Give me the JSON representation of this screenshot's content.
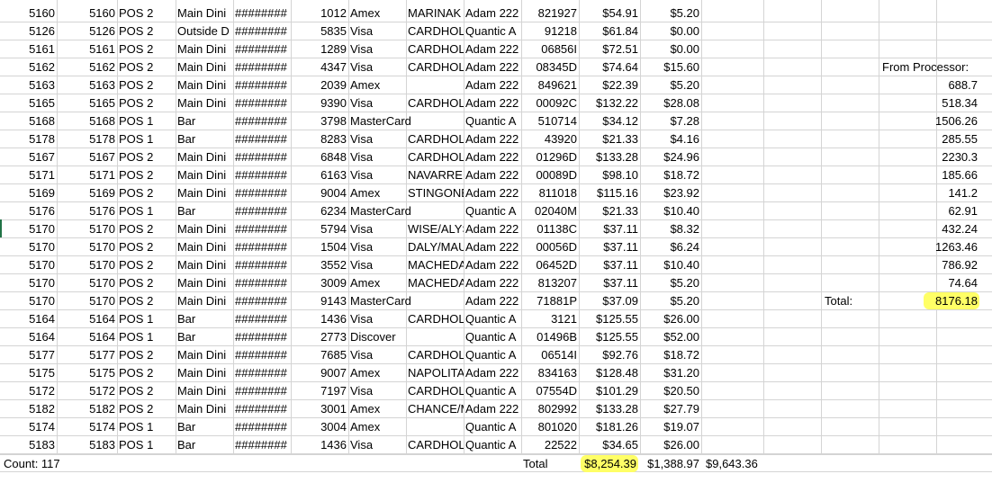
{
  "rows": [
    {
      "a": "5160",
      "b": "5160",
      "c": "POS 2",
      "d": "Main Dini",
      "e": "########",
      "f": "1012",
      "g": "Amex",
      "h": "MARINAK",
      "i": "Adam 222",
      "j": "821927",
      "k": "$54.91",
      "l": "$5.20"
    },
    {
      "a": "5126",
      "b": "5126",
      "c": "POS 2",
      "d": "Outside D",
      "e": "########",
      "f": "5835",
      "g": "Visa",
      "h": "CARDHOLI",
      "i": "Quantic A",
      "j": "91218",
      "k": "$61.84",
      "l": "$0.00"
    },
    {
      "a": "5161",
      "b": "5161",
      "c": "POS 2",
      "d": "Main Dini",
      "e": "########",
      "f": "1289",
      "g": "Visa",
      "h": "CARDHOLI",
      "i": "Adam 222",
      "j": "06856I",
      "k": "$72.51",
      "l": "$0.00"
    },
    {
      "a": "5162",
      "b": "5162",
      "c": "POS 2",
      "d": "Main Dini",
      "e": "########",
      "f": "4347",
      "g": "Visa",
      "h": "CARDHOLI",
      "i": "Adam 222",
      "j": "08345D",
      "k": "$74.64",
      "l": "$15.60"
    },
    {
      "a": "5163",
      "b": "5163",
      "c": "POS 2",
      "d": "Main Dini",
      "e": "########",
      "f": "2039",
      "g": "Amex",
      "h": "",
      "i": "Adam 222",
      "j": "849621",
      "k": "$22.39",
      "l": "$5.20"
    },
    {
      "a": "5165",
      "b": "5165",
      "c": "POS 2",
      "d": "Main Dini",
      "e": "########",
      "f": "9390",
      "g": "Visa",
      "h": "CARDHOLI",
      "i": "Adam 222",
      "j": "00092C",
      "k": "$132.22",
      "l": "$28.08"
    },
    {
      "a": "5168",
      "b": "5168",
      "c": "POS 1",
      "d": "Bar",
      "e": "########",
      "f": "3798",
      "g": "MasterCard",
      "h": "",
      "i": "Quantic A",
      "j": "510714",
      "k": "$34.12",
      "l": "$7.28"
    },
    {
      "a": "5178",
      "b": "5178",
      "c": "POS 1",
      "d": "Bar",
      "e": "########",
      "f": "8283",
      "g": "Visa",
      "h": "CARDHOLI",
      "i": "Adam 222",
      "j": "43920",
      "k": "$21.33",
      "l": "$4.16"
    },
    {
      "a": "5167",
      "b": "5167",
      "c": "POS 2",
      "d": "Main Dini",
      "e": "########",
      "f": "6848",
      "g": "Visa",
      "h": "CARDHOLI",
      "i": "Adam 222",
      "j": "01296D",
      "k": "$133.28",
      "l": "$24.96"
    },
    {
      "a": "5171",
      "b": "5171",
      "c": "POS 2",
      "d": "Main Dini",
      "e": "########",
      "f": "6163",
      "g": "Visa",
      "h": "NAVARRE",
      "i": "Adam 222",
      "j": "00089D",
      "k": "$98.10",
      "l": "$18.72"
    },
    {
      "a": "5169",
      "b": "5169",
      "c": "POS 2",
      "d": "Main Dini",
      "e": "########",
      "f": "9004",
      "g": "Amex",
      "h": "STINGONE",
      "i": "Adam 222",
      "j": "811018",
      "k": "$115.16",
      "l": "$23.92"
    },
    {
      "a": "5176",
      "b": "5176",
      "c": "POS 1",
      "d": "Bar",
      "e": "########",
      "f": "6234",
      "g": "MasterCard",
      "h": "",
      "i": "Quantic A",
      "j": "02040M",
      "k": "$21.33",
      "l": "$10.40"
    },
    {
      "a": "5170",
      "b": "5170",
      "c": "POS 2",
      "d": "Main Dini",
      "e": "########",
      "f": "5794",
      "g": "Visa",
      "h": "WISE/ALYS",
      "i": "Adam 222",
      "j": "01138C",
      "k": "$37.11",
      "l": "$8.32"
    },
    {
      "a": "5170",
      "b": "5170",
      "c": "POS 2",
      "d": "Main Dini",
      "e": "########",
      "f": "1504",
      "g": "Visa",
      "h": "DALY/MAU",
      "i": "Adam 222",
      "j": "00056D",
      "k": "$37.11",
      "l": "$6.24"
    },
    {
      "a": "5170",
      "b": "5170",
      "c": "POS 2",
      "d": "Main Dini",
      "e": "########",
      "f": "3552",
      "g": "Visa",
      "h": "MACHEDA",
      "i": "Adam 222",
      "j": "06452D",
      "k": "$37.11",
      "l": "$10.40"
    },
    {
      "a": "5170",
      "b": "5170",
      "c": "POS 2",
      "d": "Main Dini",
      "e": "########",
      "f": "3009",
      "g": "Amex",
      "h": "MACHEDA",
      "i": "Adam 222",
      "j": "813207",
      "k": "$37.11",
      "l": "$5.20"
    },
    {
      "a": "5170",
      "b": "5170",
      "c": "POS 2",
      "d": "Main Dini",
      "e": "########",
      "f": "9143",
      "g": "MasterCard",
      "h": "",
      "i": "Adam 222",
      "j": "71881P",
      "k": "$37.09",
      "l": "$5.20"
    },
    {
      "a": "5164",
      "b": "5164",
      "c": "POS 1",
      "d": "Bar",
      "e": "########",
      "f": "1436",
      "g": "Visa",
      "h": "CARDHOLI",
      "i": "Quantic A",
      "j": "3121",
      "k": "$125.55",
      "l": "$26.00"
    },
    {
      "a": "5164",
      "b": "5164",
      "c": "POS 1",
      "d": "Bar",
      "e": "########",
      "f": "2773",
      "g": "Discover",
      "h": "",
      "i": "Quantic A",
      "j": "01496B",
      "k": "$125.55",
      "l": "$52.00"
    },
    {
      "a": "5177",
      "b": "5177",
      "c": "POS 2",
      "d": "Main Dini",
      "e": "########",
      "f": "7685",
      "g": "Visa",
      "h": "CARDHOLI",
      "i": "Quantic A",
      "j": "06514I",
      "k": "$92.76",
      "l": "$18.72"
    },
    {
      "a": "5175",
      "b": "5175",
      "c": "POS 2",
      "d": "Main Dini",
      "e": "########",
      "f": "9007",
      "g": "Amex",
      "h": "NAPOLITA",
      "i": "Adam 222",
      "j": "834163",
      "k": "$128.48",
      "l": "$31.20"
    },
    {
      "a": "5172",
      "b": "5172",
      "c": "POS 2",
      "d": "Main Dini",
      "e": "########",
      "f": "7197",
      "g": "Visa",
      "h": "CARDHOLI",
      "i": "Quantic A",
      "j": "07554D",
      "k": "$101.29",
      "l": "$20.50"
    },
    {
      "a": "5182",
      "b": "5182",
      "c": "POS 2",
      "d": "Main Dini",
      "e": "########",
      "f": "3001",
      "g": "Amex",
      "h": "CHANCE/M",
      "i": "Adam 222",
      "j": "802992",
      "k": "$133.28",
      "l": "$27.79"
    },
    {
      "a": "5174",
      "b": "5174",
      "c": "POS 1",
      "d": "Bar",
      "e": "########",
      "f": "3004",
      "g": "Amex",
      "h": "",
      "i": "Quantic A",
      "j": "801020",
      "k": "$181.26",
      "l": "$19.07"
    },
    {
      "a": "5183",
      "b": "5183",
      "c": "POS 1",
      "d": "Bar",
      "e": "########",
      "f": "1436",
      "g": "Visa",
      "h": "CARDHOLI",
      "i": "Quantic A",
      "j": "22522",
      "k": "$34.65",
      "l": "$26.00"
    }
  ],
  "processor": {
    "header": "From Processor:",
    "values": [
      "688.7",
      "518.34",
      "1506.26",
      "285.55",
      "2230.3",
      "185.66",
      "141.2",
      "62.91",
      "432.24",
      "1263.46",
      "786.92",
      "74.64"
    ],
    "total_label": "Total:",
    "total_value": "8176.18"
  },
  "footer": {
    "count": "Count: 117",
    "total_label": "Total",
    "total_amount": "$8,254.39",
    "total_tips": "$1,388.97",
    "grand_total": "$9,643.36"
  },
  "colors": {
    "highlight": "#ffff66",
    "grid": "#d4d4d4",
    "selection": "#217346"
  }
}
